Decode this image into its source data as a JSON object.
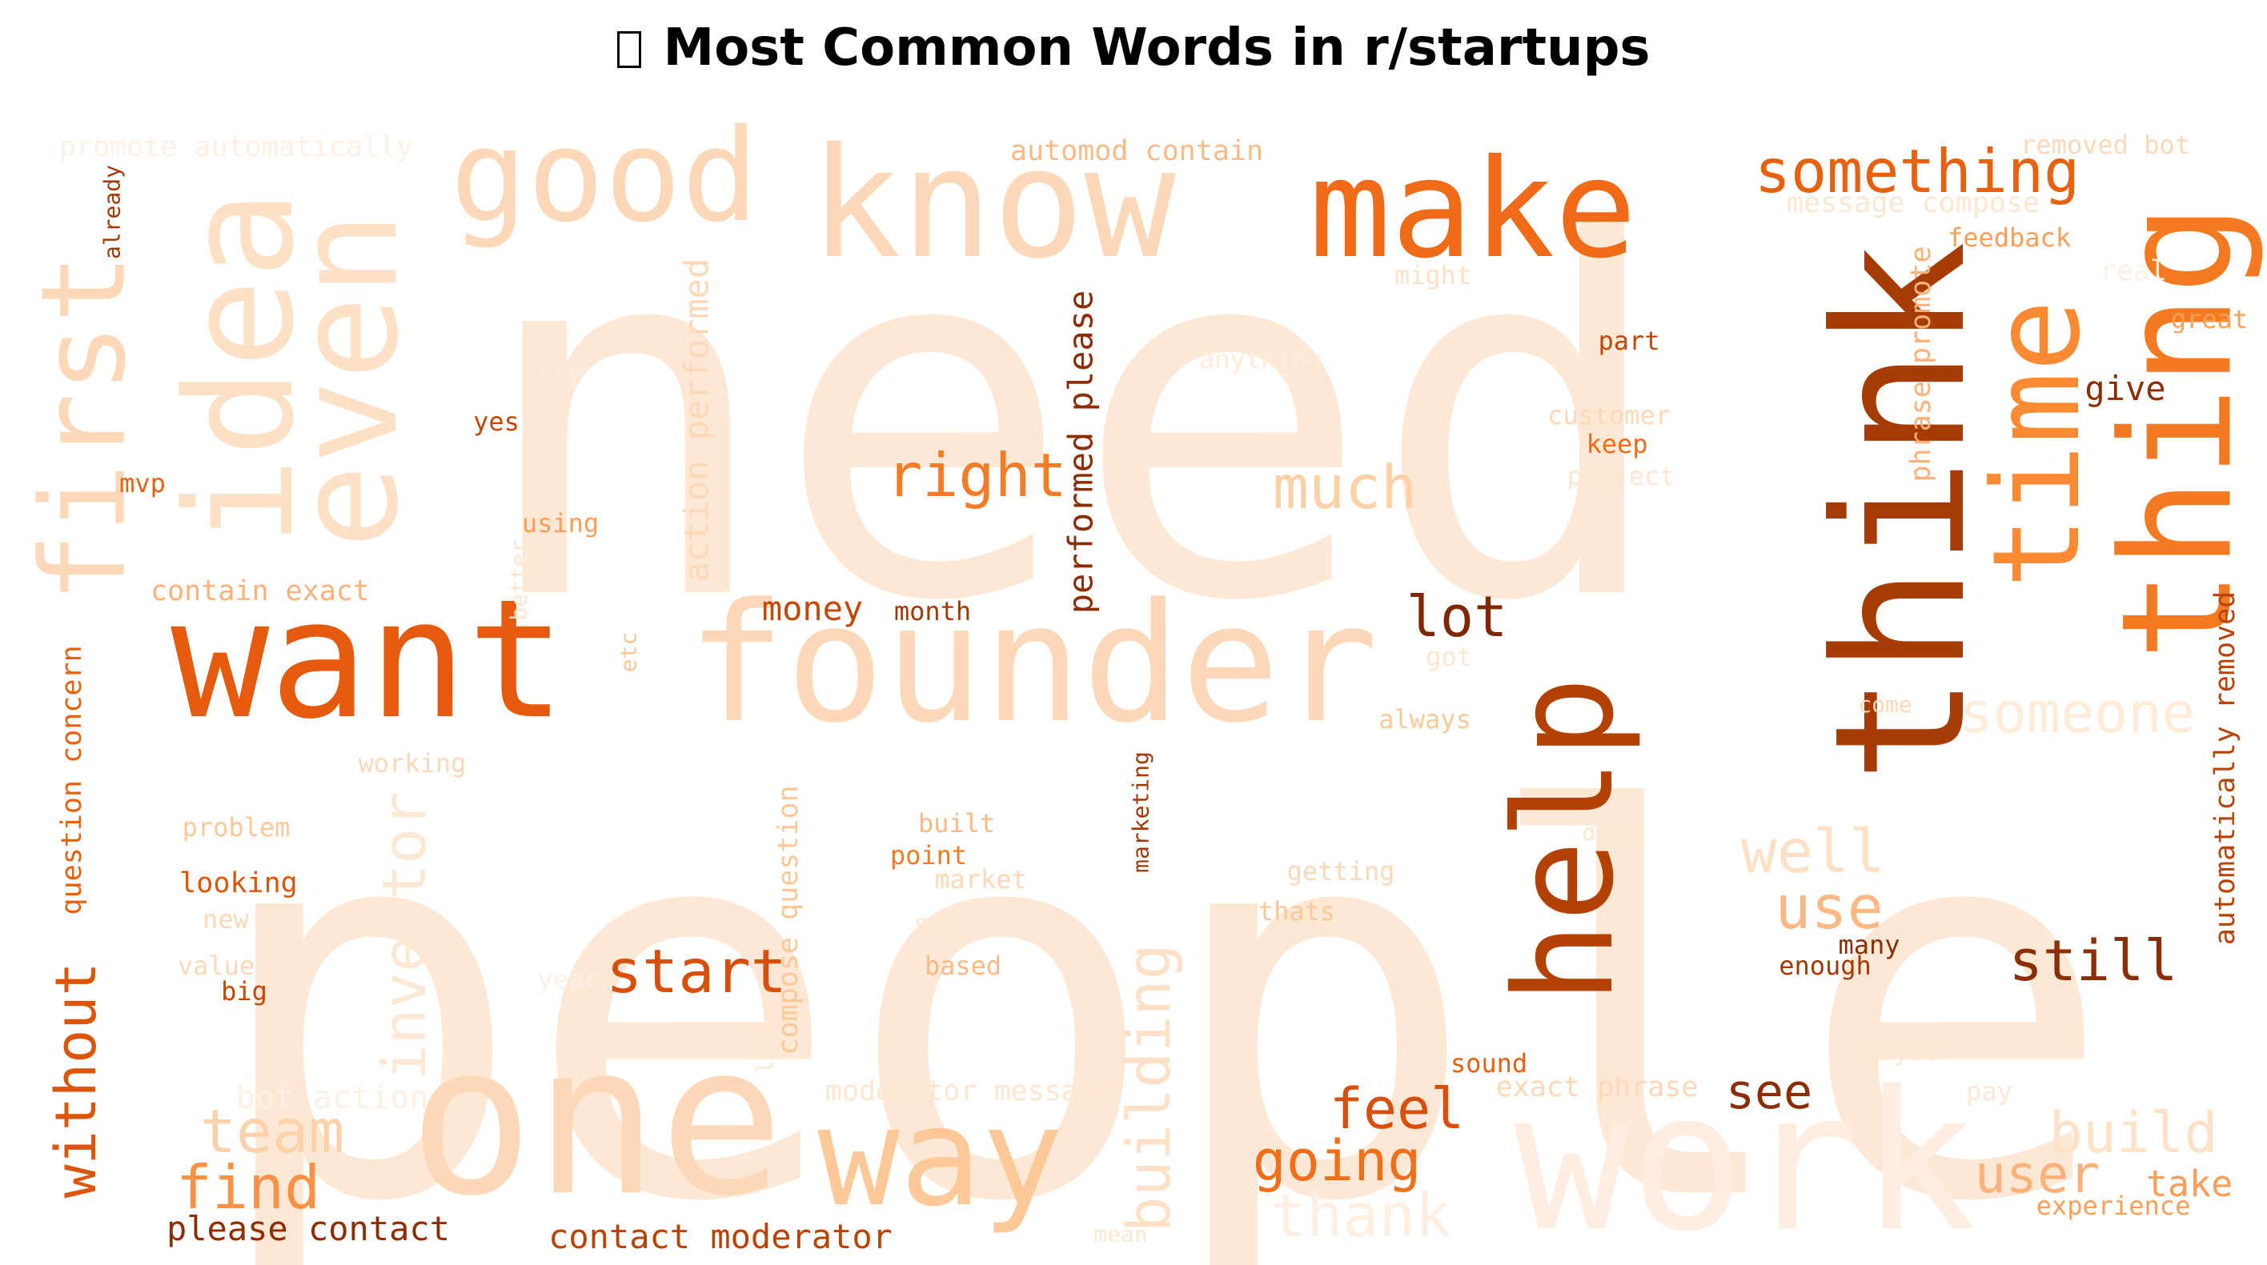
{
  "title": {
    "text": "Most Common Words in r/startups",
    "icon": "missing-glyph-box"
  },
  "colormap": "Oranges",
  "words": [
    {
      "text": "people",
      "color": "#fde8d5"
    },
    {
      "text": "need",
      "color": "#fde8d5"
    },
    {
      "text": "work",
      "color": "#feede0"
    },
    {
      "text": "one",
      "color": "#fdd8b8"
    },
    {
      "text": "founder",
      "color": "#fdd8b8"
    },
    {
      "text": "want",
      "color": "#e55a0f"
    },
    {
      "text": "think",
      "color": "#a63c03"
    },
    {
      "text": "know",
      "color": "#fdd8b8"
    },
    {
      "text": "make",
      "color": "#f06b18"
    },
    {
      "text": "thing",
      "color": "#f47a22"
    },
    {
      "text": "time",
      "color": "#fb8a32"
    },
    {
      "text": "idea",
      "color": "#fde1c7"
    },
    {
      "text": "even",
      "color": "#fde1c7"
    },
    {
      "text": "first",
      "color": "#fdd8b8"
    },
    {
      "text": "good",
      "color": "#fdd8b8"
    },
    {
      "text": "help",
      "color": "#b34104"
    },
    {
      "text": "way",
      "color": "#fdc898"
    },
    {
      "text": "something",
      "color": "#e8610f"
    },
    {
      "text": "right",
      "color": "#f47c27"
    },
    {
      "text": "much",
      "color": "#fdd0a6"
    },
    {
      "text": "lot",
      "color": "#7f2704"
    },
    {
      "text": "someone",
      "color": "#feebd8"
    },
    {
      "text": "well",
      "color": "#fee0c5"
    },
    {
      "text": "use",
      "color": "#fdb983"
    },
    {
      "text": "still",
      "color": "#8b2d05"
    },
    {
      "text": "start",
      "color": "#d94e0a"
    },
    {
      "text": "building",
      "color": "#fde0c5"
    },
    {
      "text": "investor",
      "color": "#fde8d5"
    },
    {
      "text": "without",
      "color": "#dd550b"
    },
    {
      "text": "team",
      "color": "#fdd2aa"
    },
    {
      "text": "find",
      "color": "#fc9146"
    },
    {
      "text": "feel",
      "color": "#d94e0a"
    },
    {
      "text": "going",
      "color": "#f36e18"
    },
    {
      "text": "see",
      "color": "#8b2d05"
    },
    {
      "text": "build",
      "color": "#fee2c8"
    },
    {
      "text": "user",
      "color": "#fdb07a"
    },
    {
      "text": "take",
      "color": "#fd9e58"
    },
    {
      "text": "thank",
      "color": "#feefe2"
    },
    {
      "text": "please contact",
      "color": "#8b2d05"
    },
    {
      "text": "contact moderator",
      "color": "#b94305"
    },
    {
      "text": "money",
      "color": "#c44706"
    },
    {
      "text": "month",
      "color": "#a33805"
    },
    {
      "text": "performed please",
      "color": "#8b2d05"
    },
    {
      "text": "action performed",
      "color": "#fdd8b8"
    },
    {
      "text": "compose question",
      "color": "#fdc898"
    },
    {
      "text": "question concern",
      "color": "#e8610f"
    },
    {
      "text": "automatically removed",
      "color": "#b94305"
    },
    {
      "text": "phrase promote",
      "color": "#fdb07a"
    },
    {
      "text": "promote automatically",
      "color": "#fef0e4"
    },
    {
      "text": "automod contain",
      "color": "#fdb983"
    },
    {
      "text": "removed bot",
      "color": "#fdd8b8"
    },
    {
      "text": "message compose",
      "color": "#fee6d0"
    },
    {
      "text": "feedback",
      "color": "#fd9e58"
    },
    {
      "text": "real",
      "color": "#fef0e4"
    },
    {
      "text": "great",
      "color": "#fd9e58"
    },
    {
      "text": "give",
      "color": "#8b2d05"
    },
    {
      "text": "part",
      "color": "#c44706"
    },
    {
      "text": "customer",
      "color": "#fdd8b8"
    },
    {
      "text": "keep",
      "color": "#f06b18"
    },
    {
      "text": "project",
      "color": "#fee6d0"
    },
    {
      "text": "might",
      "color": "#fde1c7"
    },
    {
      "text": "anything",
      "color": "#feebd8"
    },
    {
      "text": "try",
      "color": "#feebd8"
    },
    {
      "text": "yes",
      "color": "#c44706"
    },
    {
      "text": "mvp",
      "color": "#e8610f"
    },
    {
      "text": "using",
      "color": "#fd9e58"
    },
    {
      "text": "better",
      "color": "#fee6d0"
    },
    {
      "text": "already",
      "color": "#a33805"
    },
    {
      "text": "contain exact",
      "color": "#fdb07a"
    },
    {
      "text": "etc",
      "color": "#fdc898"
    },
    {
      "text": "got",
      "color": "#fee6d0"
    },
    {
      "text": "always",
      "color": "#fdc898"
    },
    {
      "text": "working",
      "color": "#fdd8b8"
    },
    {
      "text": "marketing",
      "color": "#a33805"
    },
    {
      "text": "come",
      "color": "#fdd8b8"
    },
    {
      "text": "done",
      "color": "#fee6d0"
    },
    {
      "text": "problem",
      "color": "#fdc898"
    },
    {
      "text": "looking",
      "color": "#dd550b"
    },
    {
      "text": "new",
      "color": "#fdd8b8"
    },
    {
      "text": "value",
      "color": "#fdd8b8"
    },
    {
      "text": "big",
      "color": "#c44706"
    },
    {
      "text": "year",
      "color": "#fef0e4"
    },
    {
      "text": "look",
      "color": "#fee6d0"
    },
    {
      "text": "built",
      "color": "#fdb983"
    },
    {
      "text": "point",
      "color": "#f47a22"
    },
    {
      "text": "market",
      "color": "#fdd8b8"
    },
    {
      "text": "say",
      "color": "#fee6d0"
    },
    {
      "text": "based",
      "color": "#fdb983"
    },
    {
      "text": "getting",
      "color": "#fdd8b8"
    },
    {
      "text": "thats",
      "color": "#fdc898"
    },
    {
      "text": "many",
      "color": "#8b2d05"
    },
    {
      "text": "enough",
      "color": "#a33805"
    },
    {
      "text": "maybe",
      "color": "#fee6d0"
    },
    {
      "text": "pay",
      "color": "#fee6d0"
    },
    {
      "text": "sound",
      "color": "#e8610f"
    },
    {
      "text": "exact phrase",
      "color": "#fdd8b8"
    },
    {
      "text": "moderator message",
      "color": "#fee6d0"
    },
    {
      "text": "bot action",
      "color": "#fef0e4"
    },
    {
      "text": "mean",
      "color": "#fee6d0"
    },
    {
      "text": "experience",
      "color": "#fd9e58"
    }
  ]
}
